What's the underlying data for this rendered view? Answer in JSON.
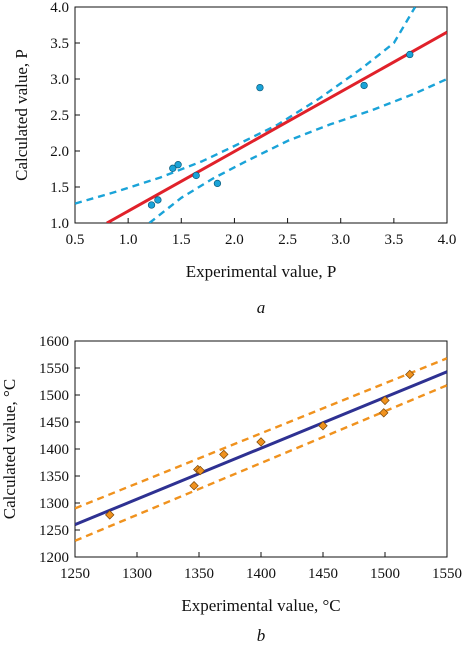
{
  "chart_data": [
    {
      "type": "scatter",
      "panel_label": "a",
      "xlabel": "Experimental value, P",
      "ylabel": "Calculated value, P",
      "xlim": [
        0.5,
        4.0
      ],
      "ylim": [
        1.0,
        4.0
      ],
      "xticks": [
        "0.5",
        "1.0",
        "1.5",
        "2.0",
        "2.5",
        "3.0",
        "3.5",
        "4.0"
      ],
      "yticks": [
        "1.0",
        "1.5",
        "2.0",
        "2.5",
        "3.0",
        "3.5",
        "4.0"
      ],
      "grid": false,
      "points": {
        "x": [
          1.22,
          1.28,
          1.42,
          1.47,
          1.64,
          1.84,
          2.24,
          3.22,
          3.65
        ],
        "y": [
          1.25,
          1.32,
          1.76,
          1.81,
          1.66,
          1.55,
          2.88,
          2.91,
          3.34
        ],
        "color": "#1aa3d8",
        "marker": "circle"
      },
      "fit_line": {
        "x": [
          0.8,
          4.0
        ],
        "y": [
          1.0,
          3.65
        ],
        "color": "#e0212a",
        "style": "solid"
      },
      "confidence_upper": {
        "x": [
          0.5,
          0.9,
          1.3,
          1.7,
          2.0,
          2.4,
          2.8,
          3.2,
          3.5,
          3.7
        ],
        "y": [
          1.27,
          1.44,
          1.63,
          1.86,
          2.07,
          2.36,
          2.73,
          3.15,
          3.5,
          4.0
        ],
        "color": "#1aa3d8",
        "style": "dashed"
      },
      "confidence_lower": {
        "x": [
          1.2,
          1.5,
          1.8,
          2.1,
          2.5,
          2.9,
          3.3,
          3.7,
          4.0
        ],
        "y": [
          1.0,
          1.35,
          1.62,
          1.85,
          2.14,
          2.37,
          2.57,
          2.8,
          3.0
        ],
        "color": "#1aa3d8",
        "style": "dashed"
      }
    },
    {
      "type": "scatter",
      "panel_label": "b",
      "xlabel": "Experimental value, °C",
      "ylabel": "Calculated value, °C",
      "xlim": [
        1250,
        1550
      ],
      "ylim": [
        1200,
        1600
      ],
      "xticks": [
        "1250",
        "1300",
        "1350",
        "1400",
        "1450",
        "1500",
        "1550"
      ],
      "yticks": [
        "1200",
        "1250",
        "1300",
        "1350",
        "1400",
        "1450",
        "1500",
        "1550",
        "1600"
      ],
      "grid": false,
      "points": {
        "x": [
          1278,
          1346,
          1349,
          1351,
          1370,
          1400,
          1450,
          1499,
          1500,
          1520
        ],
        "y": [
          1278,
          1332,
          1362,
          1360,
          1390,
          1413,
          1443,
          1467,
          1490,
          1538
        ],
        "color": "#f0921e",
        "marker": "diamond"
      },
      "fit_line": {
        "x": [
          1250,
          1550
        ],
        "y": [
          1260,
          1543
        ],
        "color": "#2e3192",
        "style": "solid"
      },
      "confidence_upper": {
        "x": [
          1250,
          1550
        ],
        "y": [
          1290,
          1568
        ],
        "color": "#f0921e",
        "style": "dashed"
      },
      "confidence_lower": {
        "x": [
          1250,
          1550
        ],
        "y": [
          1230,
          1518
        ],
        "color": "#f0921e",
        "style": "dashed"
      }
    }
  ]
}
